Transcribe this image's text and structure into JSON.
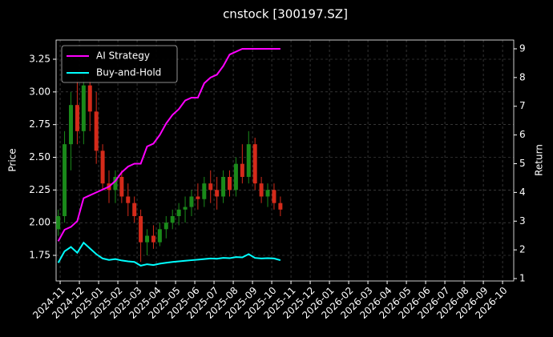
{
  "chart_data": {
    "type": "candlestick",
    "title": "cnstock [300197.SZ]",
    "ylabel": "Price",
    "y2label": "Return",
    "x": [
      -0.1,
      0.23,
      0.56,
      0.89,
      1.22,
      1.55,
      1.88,
      2.21,
      2.54,
      2.87,
      3.2,
      3.53,
      3.86,
      4.19,
      4.52,
      4.85,
      5.18,
      5.51,
      5.84,
      6.17,
      6.5,
      6.83,
      7.16,
      7.49,
      7.82,
      8.15,
      8.48,
      8.81,
      9.14,
      9.47,
      9.8,
      10.13,
      10.46,
      10.79,
      11.12,
      11.45
    ],
    "candles": {
      "up_color": "#1a8a1a",
      "down_color": "#d42a1a",
      "open": [
        1.95,
        2.05,
        2.6,
        2.9,
        2.7,
        3.05,
        2.85,
        2.55,
        2.3,
        2.25,
        2.35,
        2.2,
        2.15,
        2.05,
        1.85,
        1.9,
        1.85,
        1.95,
        2.0,
        2.05,
        2.1,
        2.12,
        2.2,
        2.18,
        2.3,
        2.25,
        2.2,
        2.35,
        2.25,
        2.45,
        2.35,
        2.6,
        2.3,
        2.2,
        2.25,
        2.15
      ],
      "high": [
        2.1,
        2.7,
        3.0,
        3.1,
        3.15,
        3.1,
        3.0,
        2.6,
        2.4,
        2.4,
        2.4,
        2.3,
        2.2,
        2.1,
        1.95,
        1.98,
        2.0,
        2.05,
        2.1,
        2.15,
        2.2,
        2.25,
        2.3,
        2.35,
        2.4,
        2.35,
        2.4,
        2.4,
        2.5,
        2.6,
        2.7,
        2.65,
        2.35,
        2.3,
        2.3,
        2.2
      ],
      "low": [
        1.9,
        2.0,
        2.4,
        2.6,
        2.6,
        2.7,
        2.45,
        2.25,
        2.15,
        2.15,
        2.15,
        2.05,
        2.0,
        1.7,
        1.75,
        1.8,
        1.82,
        1.88,
        1.95,
        1.98,
        2.0,
        2.05,
        2.1,
        2.12,
        2.15,
        2.1,
        2.15,
        2.2,
        2.2,
        2.3,
        2.3,
        2.25,
        2.15,
        2.12,
        2.1,
        2.05
      ],
      "close": [
        2.05,
        2.6,
        2.9,
        2.7,
        3.05,
        2.85,
        2.55,
        2.3,
        2.25,
        2.35,
        2.2,
        2.15,
        2.05,
        1.85,
        1.9,
        1.85,
        1.95,
        2.0,
        2.05,
        2.1,
        2.12,
        2.2,
        2.18,
        2.3,
        2.25,
        2.2,
        2.35,
        2.25,
        2.45,
        2.35,
        2.6,
        2.3,
        2.2,
        2.25,
        2.15,
        2.1
      ]
    },
    "series": [
      {
        "name": "AI Strategy",
        "color": "#ff00ff",
        "axis": "y2",
        "values": [
          2.3,
          2.7,
          2.8,
          3.0,
          3.8,
          3.9,
          4.0,
          4.1,
          4.2,
          4.4,
          4.7,
          4.9,
          5.0,
          5.0,
          5.6,
          5.7,
          6.0,
          6.4,
          6.7,
          6.9,
          7.2,
          7.3,
          7.3,
          7.8,
          8.0,
          8.1,
          8.4,
          8.8,
          8.9,
          9.0,
          9.0,
          9.0,
          9.0,
          9.0,
          9.0,
          9.0
        ]
      },
      {
        "name": "Buy-and-Hold",
        "color": "#00ffff",
        "axis": "y2",
        "values": [
          1.55,
          1.95,
          2.1,
          1.9,
          2.25,
          2.05,
          1.85,
          1.7,
          1.65,
          1.68,
          1.63,
          1.6,
          1.58,
          1.45,
          1.5,
          1.47,
          1.52,
          1.55,
          1.58,
          1.6,
          1.62,
          1.64,
          1.66,
          1.68,
          1.7,
          1.69,
          1.72,
          1.71,
          1.75,
          1.74,
          1.85,
          1.72,
          1.7,
          1.71,
          1.7,
          1.64
        ]
      }
    ],
    "xlim": [
      -0.21,
      23.58
    ],
    "xticks": [
      {
        "value": 0,
        "label": "2024-11"
      },
      {
        "value": 1,
        "label": "2024-12"
      },
      {
        "value": 2,
        "label": "2025-01"
      },
      {
        "value": 3,
        "label": "2025-02"
      },
      {
        "value": 4,
        "label": "2025-03"
      },
      {
        "value": 5,
        "label": "2025-04"
      },
      {
        "value": 6,
        "label": "2025-05"
      },
      {
        "value": 7,
        "label": "2025-06"
      },
      {
        "value": 8,
        "label": "2025-07"
      },
      {
        "value": 9,
        "label": "2025-08"
      },
      {
        "value": 10,
        "label": "2025-09"
      },
      {
        "value": 11,
        "label": "2025-10"
      },
      {
        "value": 12,
        "label": "2025-11"
      },
      {
        "value": 13,
        "label": "2025-12"
      },
      {
        "value": 14,
        "label": "2026-01"
      },
      {
        "value": 15,
        "label": "2026-02"
      },
      {
        "value": 16,
        "label": "2026-03"
      },
      {
        "value": 17,
        "label": "2026-04"
      },
      {
        "value": 18,
        "label": "2026-05"
      },
      {
        "value": 19,
        "label": "2026-06"
      },
      {
        "value": 20,
        "label": "2026-07"
      },
      {
        "value": 21,
        "label": "2026-08"
      },
      {
        "value": 22,
        "label": "2026-09"
      },
      {
        "value": 23,
        "label": "2026-10"
      }
    ],
    "ylim": [
      1.554,
      3.397
    ],
    "yticks": [
      1.75,
      {
        "value": 2,
        "label": "2.00"
      },
      2.25,
      {
        "value": 2.5,
        "label": "2.50"
      },
      2.75,
      {
        "value": 3,
        "label": "3.00"
      },
      3.25
    ],
    "y2lim": [
      0.917,
      9.306
    ],
    "y2ticks": [
      1,
      2,
      3,
      4,
      5,
      6,
      7,
      8,
      9
    ],
    "grid": true,
    "legend": "upper left"
  }
}
